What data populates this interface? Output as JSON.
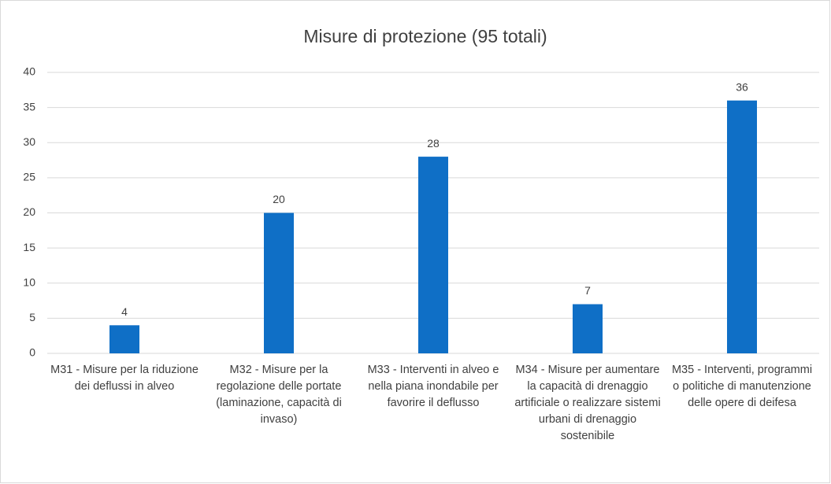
{
  "chart_data": {
    "type": "bar",
    "title": "Misure di protezione (95 totali)",
    "categories": [
      "M31 - Misure per la riduzione dei deflussi in alveo",
      "M32 - Misure per la regolazione delle portate (laminazione, capacità di invaso)",
      "M33 - Interventi in alveo e nella piana inondabile per favorire il deflusso",
      "M34 - Misure per aumentare la capacità di drenaggio artificiale o realizzare sistemi urbani di drenaggio sostenibile",
      "M35 - Interventi, programmi o politiche di manutenzione delle opere di deifesa"
    ],
    "values": [
      4,
      20,
      28,
      7,
      36
    ],
    "color": "#0f6fc6",
    "ylim": [
      0,
      40
    ],
    "yticks": [
      0,
      5,
      10,
      15,
      20,
      25,
      30,
      35,
      40
    ],
    "grid": true
  }
}
